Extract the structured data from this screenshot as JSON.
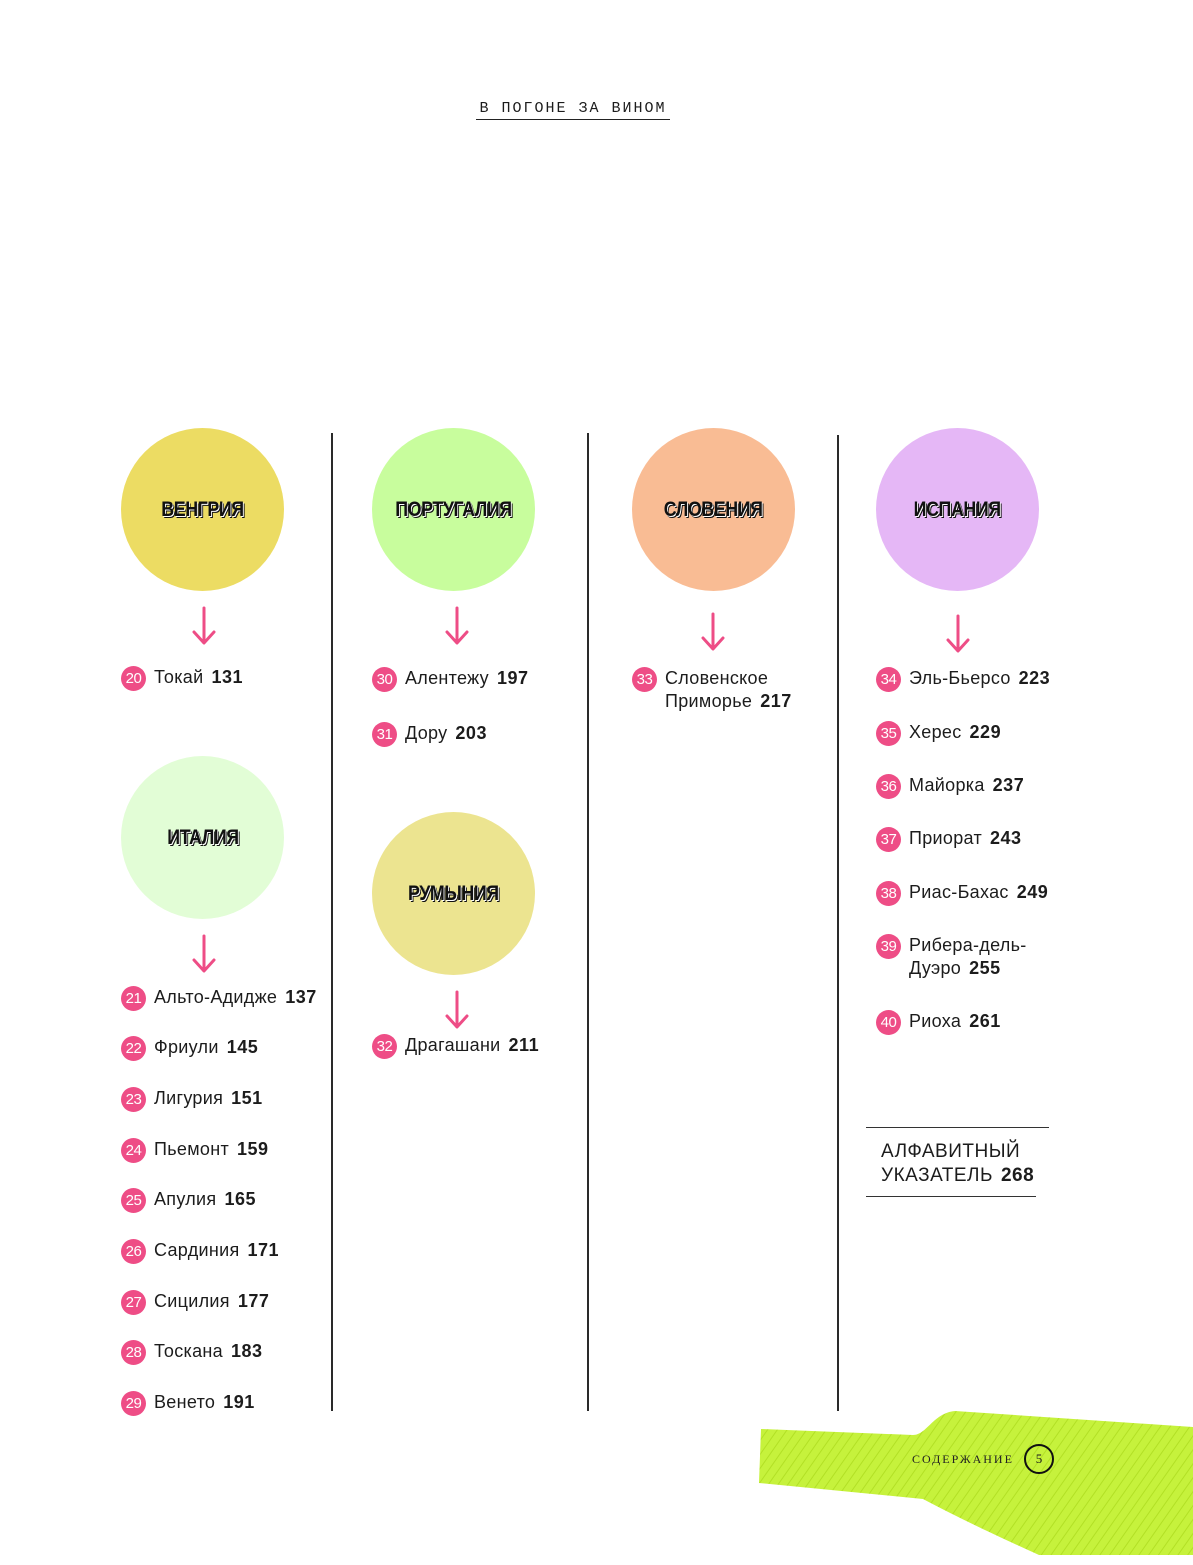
{
  "header": {
    "book_title": "В ПОГОНЕ ЗА ВИНОМ"
  },
  "regions": {
    "hungary": {
      "name": "ВЕНГРИЯ",
      "color": "#ecdc63"
    },
    "italy": {
      "name": "ИТАЛИЯ",
      "color": "#e2fdd6"
    },
    "portugal": {
      "name": "ПОРТУГАЛИЯ",
      "color": "#c8fd9d"
    },
    "romania": {
      "name": "РУМЫНИЯ",
      "color": "#ece490"
    },
    "slovenia": {
      "name": "СЛОВЕНИЯ",
      "color": "#f9bc94"
    },
    "spain": {
      "name": "ИСПАНИЯ",
      "color": "#e5b7f6"
    }
  },
  "entries": [
    {
      "num": "20",
      "name": "Токай",
      "page": "131"
    },
    {
      "num": "21",
      "name": "Альто-Адидже",
      "page": "137"
    },
    {
      "num": "22",
      "name": "Фриули",
      "page": "145"
    },
    {
      "num": "23",
      "name": "Лигурия",
      "page": "151"
    },
    {
      "num": "24",
      "name": "Пьемонт",
      "page": "159"
    },
    {
      "num": "25",
      "name": "Апулия",
      "page": "165"
    },
    {
      "num": "26",
      "name": "Сардиния",
      "page": "171"
    },
    {
      "num": "27",
      "name": "Сицилия",
      "page": "177"
    },
    {
      "num": "28",
      "name": "Тоскана",
      "page": "183"
    },
    {
      "num": "29",
      "name": "Венето",
      "page": "191"
    },
    {
      "num": "30",
      "name": "Алентежу",
      "page": "197"
    },
    {
      "num": "31",
      "name": "Дору",
      "page": "203"
    },
    {
      "num": "32",
      "name": "Драгашани",
      "page": "211"
    },
    {
      "num": "33",
      "name_line1": "Словенское",
      "name_line2": "Приморье",
      "page": "217"
    },
    {
      "num": "34",
      "name": "Эль-Бьерсо",
      "page": "223"
    },
    {
      "num": "35",
      "name": "Херес",
      "page": "229"
    },
    {
      "num": "36",
      "name": "Майорка",
      "page": "237"
    },
    {
      "num": "37",
      "name": "Приорат",
      "page": "243"
    },
    {
      "num": "38",
      "name": "Риас-Бахас",
      "page": "249"
    },
    {
      "num": "39",
      "name_line1": "Рибера-дель-",
      "name_line2": "Дуэро",
      "page": "255"
    },
    {
      "num": "40",
      "name": "Риоха",
      "page": "261"
    }
  ],
  "index": {
    "line1": "АЛФАВИТНЫЙ",
    "line2": "УКАЗАТЕЛЬ",
    "page": "268"
  },
  "footer": {
    "section_label": "СОДЕРЖАНИЕ",
    "page_number": "5",
    "bottle_color": "#c6f23c"
  },
  "accent_color": "#ee4d86"
}
